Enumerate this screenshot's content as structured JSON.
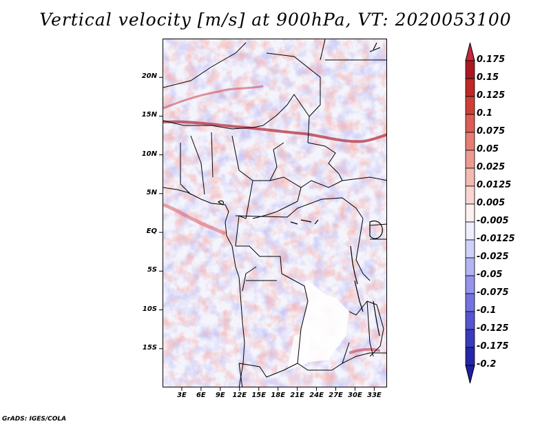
{
  "title": "Vertical velocity [m/s] at 900hPa, VT: 2020053100",
  "credit": "GrADS: IGES/COLA",
  "map": {
    "lon_range": [
      0,
      35
    ],
    "lat_range": [
      -20,
      25
    ],
    "lat_ticks": [
      {
        "value": 20,
        "label": "20N"
      },
      {
        "value": 15,
        "label": "15N"
      },
      {
        "value": 10,
        "label": "10N"
      },
      {
        "value": 5,
        "label": "5N"
      },
      {
        "value": 0,
        "label": "EQ"
      },
      {
        "value": -5,
        "label": "5S"
      },
      {
        "value": -10,
        "label": "10S"
      },
      {
        "value": -15,
        "label": "15S"
      }
    ],
    "lon_ticks": [
      {
        "value": 3,
        "label": "3E"
      },
      {
        "value": 6,
        "label": "6E"
      },
      {
        "value": 9,
        "label": "9E"
      },
      {
        "value": 12,
        "label": "12E"
      },
      {
        "value": 15,
        "label": "15E"
      },
      {
        "value": 18,
        "label": "18E"
      },
      {
        "value": 21,
        "label": "21E"
      },
      {
        "value": 24,
        "label": "24E"
      },
      {
        "value": 27,
        "label": "27E"
      },
      {
        "value": 30,
        "label": "30E"
      },
      {
        "value": 33,
        "label": "33E"
      }
    ]
  },
  "colorbar": {
    "levels": [
      {
        "label": "0.175",
        "color": "#a0141e"
      },
      {
        "label": "0.15",
        "color": "#b41e23"
      },
      {
        "label": "0.125",
        "color": "#c83228"
      },
      {
        "label": "0.1",
        "color": "#d64b41"
      },
      {
        "label": "0.075",
        "color": "#e16e64"
      },
      {
        "label": "0.05",
        "color": "#e88c82"
      },
      {
        "label": "0.025",
        "color": "#f0aaa3"
      },
      {
        "label": "0.0125",
        "color": "#f5c8c3"
      },
      {
        "label": "0.005",
        "color": "#fae1de"
      },
      {
        "label": "-0.005",
        "color": "#ffffff"
      },
      {
        "label": "-0.0125",
        "color": "#dcdcfa"
      },
      {
        "label": "-0.025",
        "color": "#c3c3f5"
      },
      {
        "label": "-0.05",
        "color": "#a5a5f0"
      },
      {
        "label": "-0.075",
        "color": "#8282e6"
      },
      {
        "label": "-0.1",
        "color": "#6464d7"
      },
      {
        "label": "-0.125",
        "color": "#4646c8"
      },
      {
        "label": "-0.175",
        "color": "#2d2db4"
      },
      {
        "label": "-0.2",
        "color": "#1e1ea0"
      }
    ],
    "top_color": "#c8283c",
    "bottom_color": "#1e1ea0"
  },
  "field_colors": {
    "positive": "#e8706a",
    "strong_positive": "#b4323c",
    "negative": "#8a8ae8",
    "strong_negative": "#5050d0"
  }
}
